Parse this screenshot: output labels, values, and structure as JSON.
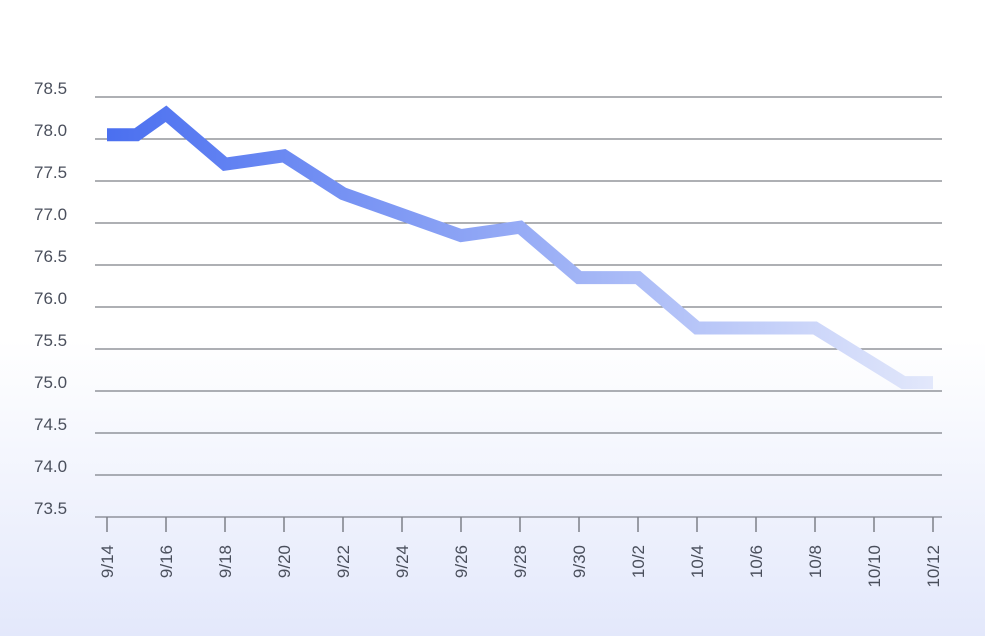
{
  "chart_data": {
    "type": "line",
    "title": "",
    "xlabel": "",
    "ylabel": "",
    "ylim": [
      73.5,
      78.5
    ],
    "yticks": [
      "78.5",
      "78.0",
      "77.5",
      "77.0",
      "76.5",
      "76.0",
      "75.5",
      "75.0",
      "74.5",
      "74.0",
      "73.5"
    ],
    "xticks": [
      "9/14",
      "9/16",
      "9/18",
      "9/20",
      "9/22",
      "9/24",
      "9/26",
      "9/28",
      "9/30",
      "10/2",
      "10/4",
      "10/6",
      "10/8",
      "10/10",
      "10/12"
    ],
    "grid": true,
    "line_color_start": "#4a6ff0",
    "line_color_end": "#e4e9fb",
    "series": [
      {
        "x": [
          "9/14",
          "9/15",
          "9/16",
          "9/18",
          "9/20",
          "9/22",
          "9/26",
          "9/28",
          "9/30",
          "10/2",
          "10/4",
          "10/8",
          "10/11",
          "10/12"
        ],
        "values": [
          78.05,
          78.05,
          78.3,
          77.7,
          77.8,
          77.35,
          76.85,
          76.95,
          76.35,
          76.35,
          75.75,
          75.75,
          75.1,
          75.1
        ]
      }
    ]
  }
}
